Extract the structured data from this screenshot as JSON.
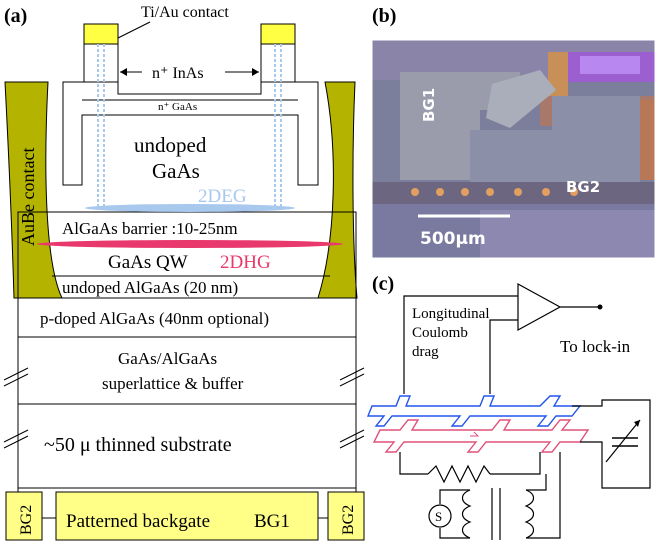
{
  "panel_a": {
    "label": "(a)",
    "contact_label": "Ti/Au contact",
    "ninas_label": "n⁺ InAs",
    "ngaas_label": "n⁺ GaAs",
    "undoped_gaas_1": "undoped",
    "undoped_gaas_2": "GaAs",
    "twodeg": "2DEG",
    "aube_contact": "AuBe contact",
    "barrier": "AlGaAs barrier :10-25nm",
    "qw": "GaAs QW",
    "twodhg": "2DHG",
    "undoped_algaas": "undoped AlGaAs (20 nm)",
    "pdoped": "p-doped AlGaAs (40nm optional)",
    "superlattice_1": "GaAs/AlGaAs",
    "superlattice_2": "superlattice & buffer",
    "substrate": "~50 μ  thinned substrate",
    "bg2_left": "BG2",
    "patterned": "Patterned backgate",
    "bg1": "BG1",
    "bg2_right": "BG2",
    "colors": {
      "contact_yellow": "#ffff44",
      "aube_olive": "#b3b300",
      "twodeg_blue": "#a8c8ee",
      "twodhg_pink": "#e8386c"
    }
  },
  "panel_b": {
    "label": "(b)",
    "bg1": "BG1",
    "bg2": "BG2",
    "scale": "500μm"
  },
  "panel_c": {
    "label": "(c)",
    "drag_1": "Longitudinal",
    "drag_2": "Coulomb",
    "drag_3": "drag",
    "lockin": "To lock-in",
    "source_symbol": "S",
    "colors": {
      "top_layer": "#2255ee",
      "bottom_layer": "#e0507a"
    }
  }
}
